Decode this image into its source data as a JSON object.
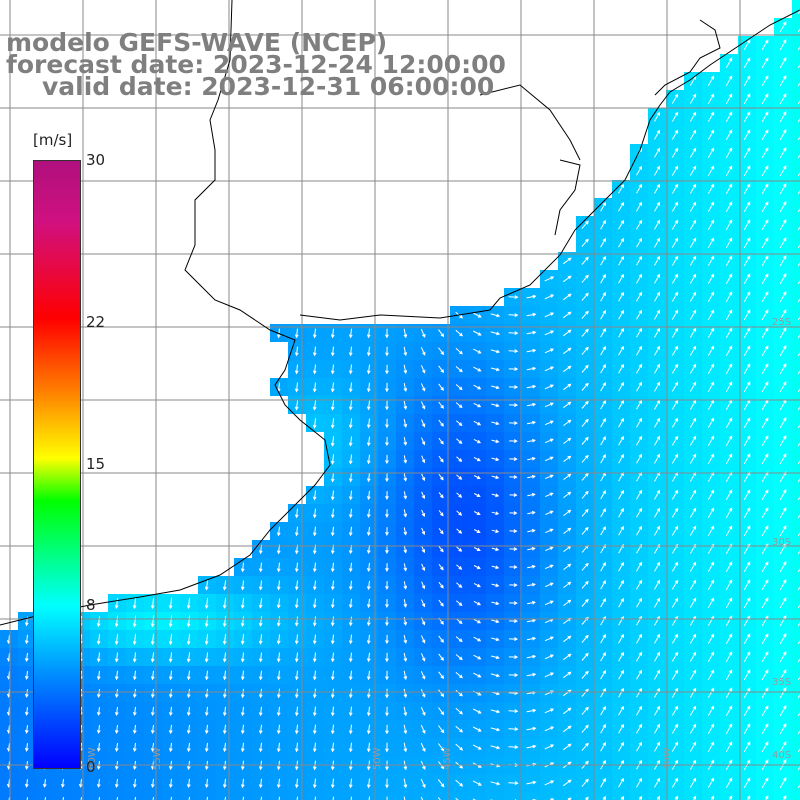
{
  "title": {
    "line1": "modelo GEFS-WAVE (NCEP)",
    "line2": "forecast date: 2023-12-24 12:00:00",
    "line3": "valid date: 2023-12-31 06:00:00"
  },
  "colorbar": {
    "unit": "[m/s]",
    "ticks": [
      {
        "value": 30,
        "label": "30"
      },
      {
        "value": 22,
        "label": "22"
      },
      {
        "value": 15,
        "label": "15"
      },
      {
        "value": 8,
        "label": "8"
      },
      {
        "value": 0,
        "label": "0"
      }
    ]
  },
  "grid_labels": {
    "bottom": [
      "60W",
      "55W",
      "50W",
      "45W",
      "40W"
    ],
    "right": [
      "25S",
      "30S",
      "35S",
      "40S"
    ]
  },
  "colors": {
    "title": "#7f7f7f",
    "land": "#ffffff",
    "grid": "#888888",
    "coast": "#000000",
    "arrows": "#ffffff"
  }
}
